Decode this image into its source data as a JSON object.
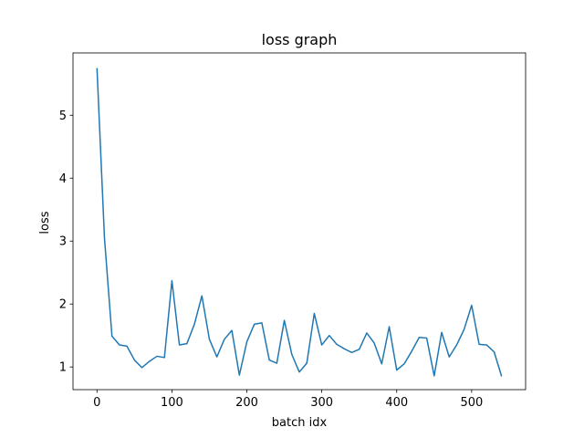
{
  "chart_data": {
    "type": "line",
    "title": "loss graph",
    "xlabel": "batch idx",
    "ylabel": "loss",
    "xlim": [
      -32,
      572
    ],
    "ylim": [
      0.64,
      5.99
    ],
    "xticks": [
      0,
      100,
      200,
      300,
      400,
      500
    ],
    "yticks": [
      1,
      2,
      3,
      4,
      5
    ],
    "grid": false,
    "legend": "none",
    "series": [
      {
        "color": "#1f77b4",
        "x": [
          0,
          10,
          20,
          30,
          40,
          50,
          60,
          70,
          80,
          90,
          100,
          110,
          120,
          130,
          140,
          150,
          160,
          170,
          180,
          190,
          200,
          210,
          220,
          230,
          240,
          250,
          260,
          270,
          280,
          290,
          300,
          310,
          320,
          330,
          340,
          350,
          360,
          370,
          380,
          390,
          400,
          410,
          420,
          430,
          440,
          450,
          460,
          470,
          480,
          490,
          500,
          510,
          520,
          530,
          540
        ],
        "y": [
          5.75,
          3.05,
          1.49,
          1.35,
          1.33,
          1.11,
          0.99,
          1.09,
          1.17,
          1.15,
          2.37,
          1.35,
          1.37,
          1.68,
          2.13,
          1.44,
          1.16,
          1.44,
          1.58,
          0.87,
          1.4,
          1.68,
          1.7,
          1.11,
          1.06,
          1.74,
          1.2,
          0.92,
          1.06,
          1.85,
          1.35,
          1.5,
          1.36,
          1.29,
          1.23,
          1.28,
          1.54,
          1.38,
          1.05,
          1.64,
          0.95,
          1.05,
          1.25,
          1.47,
          1.46,
          0.86,
          1.55,
          1.16,
          1.35,
          1.6,
          1.98,
          1.36,
          1.35,
          1.24,
          0.85
        ]
      }
    ]
  }
}
